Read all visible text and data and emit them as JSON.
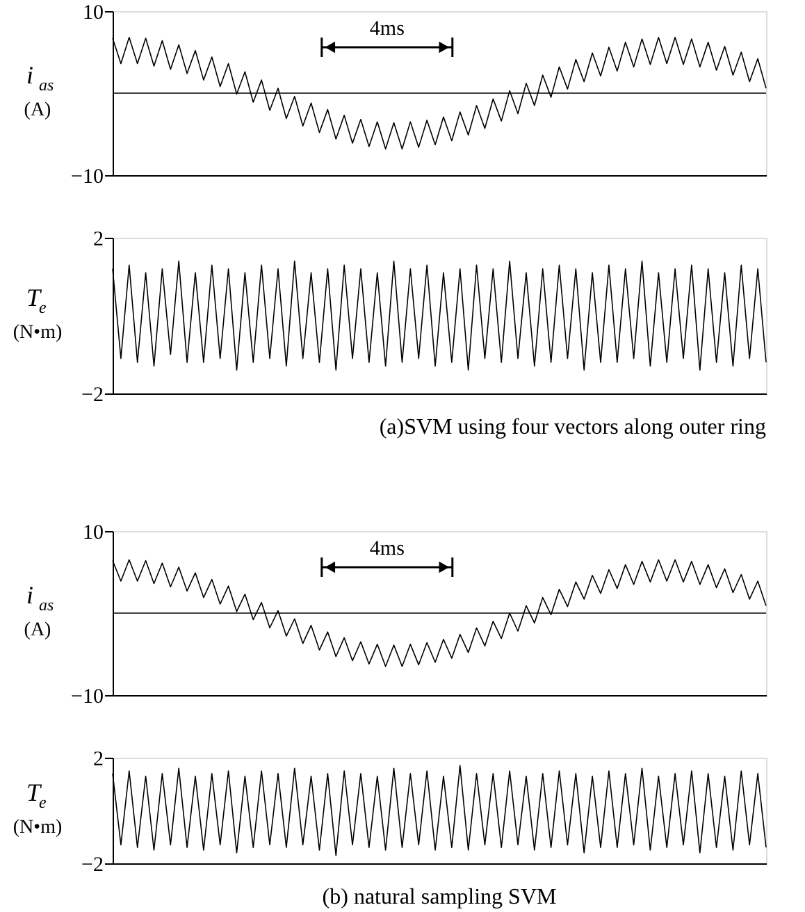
{
  "chart_data": [
    {
      "type": "line",
      "categories": [
        null,
        null,
        null,
        null,
        null,
        null,
        null,
        null,
        null,
        null,
        null,
        null,
        null,
        null,
        null,
        null,
        null,
        null,
        null,
        null,
        null,
        null,
        null,
        null,
        null,
        null,
        null,
        null,
        null,
        null,
        null,
        null,
        null,
        null,
        null,
        null,
        null,
        null,
        null,
        null,
        null,
        null,
        null,
        null,
        null,
        null,
        null,
        null,
        null,
        null,
        null,
        null,
        null,
        null,
        null,
        null,
        null,
        null,
        null,
        null,
        null,
        null,
        null,
        null,
        null,
        null,
        null,
        null,
        null,
        null,
        null,
        null,
        null,
        null,
        null,
        null,
        null,
        null,
        null,
        null
      ],
      "series": [
        {
          "color": "#000000",
          "values": [
            6.7,
            3.6,
            6.8,
            3.6,
            6.7,
            3.3,
            6.4,
            2.9,
            5.9,
            2.4,
            5.2,
            1.6,
            4.4,
            0.8,
            3.6,
            -0.1,
            2.6,
            -1.1,
            1.6,
            -2.1,
            0.6,
            -3.1,
            -0.4,
            -4.0,
            -1.2,
            -4.8,
            -2.0,
            -5.6,
            -2.7,
            -6.1,
            -3.2,
            -6.5,
            -3.5,
            -6.8,
            -3.6,
            -6.8,
            -3.5,
            -6.6,
            -3.3,
            -6.3,
            -2.9,
            -5.8,
            -2.3,
            -5.1,
            -1.5,
            -4.3,
            -0.7,
            -3.4,
            0.3,
            -2.5,
            1.2,
            -1.5,
            2.2,
            -0.5,
            3.2,
            0.5,
            4.1,
            1.4,
            4.9,
            2.1,
            5.6,
            2.7,
            6.2,
            3.2,
            6.6,
            3.5,
            6.8,
            3.6,
            6.8,
            3.5,
            6.6,
            3.2,
            6.2,
            2.8,
            5.7,
            2.2,
            5.0,
            1.4,
            4.2,
            0.6
          ]
        }
      ],
      "ylim": [
        -10,
        10
      ],
      "yticks": [
        -10,
        10
      ],
      "ylabel": "i$_{as}$ (A)",
      "tick_labels": "y",
      "ref_lines": [
        {
          "axis": "y",
          "value": 0,
          "color": "#000000"
        }
      ],
      "annotations": [
        "4ms"
      ]
    },
    {
      "type": "line",
      "categories": [
        null,
        null,
        null,
        null,
        null,
        null,
        null,
        null,
        null,
        null,
        null,
        null,
        null,
        null,
        null,
        null,
        null,
        null,
        null,
        null,
        null,
        null,
        null,
        null,
        null,
        null,
        null,
        null,
        null,
        null,
        null,
        null,
        null,
        null,
        null,
        null,
        null,
        null,
        null,
        null,
        null,
        null,
        null,
        null,
        null,
        null,
        null,
        null,
        null,
        null,
        null,
        null,
        null,
        null,
        null,
        null,
        null,
        null,
        null,
        null,
        null,
        null,
        null,
        null,
        null,
        null,
        null,
        null,
        null,
        null,
        null,
        null,
        null,
        null,
        null,
        null,
        null,
        null,
        null,
        null
      ],
      "series": [
        {
          "color": "#000000",
          "values": [
            1.2,
            -1.1,
            1.3,
            -1.2,
            1.1,
            -1.3,
            1.2,
            -1.0,
            1.4,
            -1.2,
            1.1,
            -1.2,
            1.3,
            -1.1,
            1.2,
            -1.4,
            1.1,
            -1.2,
            1.3,
            -1.1,
            1.2,
            -1.3,
            1.4,
            -1.1,
            1.1,
            -1.2,
            1.2,
            -1.4,
            1.3,
            -1.1,
            1.2,
            -1.2,
            1.1,
            -1.3,
            1.4,
            -1.2,
            1.2,
            -1.1,
            1.3,
            -1.3,
            1.1,
            -1.2,
            1.2,
            -1.4,
            1.3,
            -1.1,
            1.2,
            -1.2,
            1.4,
            -1.1,
            1.1,
            -1.3,
            1.2,
            -1.2,
            1.3,
            -1.1,
            1.2,
            -1.4,
            1.1,
            -1.2,
            1.3,
            -1.2,
            1.2,
            -1.1,
            1.4,
            -1.3,
            1.1,
            -1.2,
            1.2,
            -1.1,
            1.3,
            -1.4,
            1.2,
            -1.2,
            1.1,
            -1.3,
            1.3,
            -1.1,
            1.2,
            -1.2
          ]
        }
      ],
      "ylim": [
        -2,
        2
      ],
      "yticks": [
        -2,
        2
      ],
      "ylabel": "T$_{e}$ (N•m)",
      "tick_labels": "y",
      "annotations": [
        "(a)SVM using four vectors along outer ring"
      ]
    },
    {
      "type": "line",
      "categories": [
        null,
        null,
        null,
        null,
        null,
        null,
        null,
        null,
        null,
        null,
        null,
        null,
        null,
        null,
        null,
        null,
        null,
        null,
        null,
        null,
        null,
        null,
        null,
        null,
        null,
        null,
        null,
        null,
        null,
        null,
        null,
        null,
        null,
        null,
        null,
        null,
        null,
        null,
        null,
        null,
        null,
        null,
        null,
        null,
        null,
        null,
        null,
        null,
        null,
        null,
        null,
        null,
        null,
        null,
        null,
        null,
        null,
        null,
        null,
        null,
        null,
        null,
        null,
        null,
        null,
        null,
        null,
        null,
        null,
        null,
        null,
        null,
        null,
        null,
        null,
        null,
        null,
        null,
        null,
        null
      ],
      "series": [
        {
          "color": "#000000",
          "values": [
            6.4,
            3.9,
            6.5,
            3.9,
            6.4,
            3.6,
            6.1,
            3.2,
            5.6,
            2.7,
            4.9,
            1.9,
            4.1,
            1.1,
            3.3,
            0.2,
            2.3,
            -0.8,
            1.3,
            -1.8,
            0.3,
            -2.8,
            -0.7,
            -3.7,
            -1.5,
            -4.5,
            -2.3,
            -5.3,
            -3.0,
            -5.8,
            -3.5,
            -6.2,
            -3.8,
            -6.5,
            -3.9,
            -6.5,
            -3.8,
            -6.3,
            -3.6,
            -6.0,
            -3.2,
            -5.5,
            -2.6,
            -4.8,
            -1.8,
            -4.0,
            -1.0,
            -3.1,
            0.0,
            -2.2,
            0.9,
            -1.2,
            1.9,
            -0.2,
            2.9,
            0.8,
            3.8,
            1.7,
            4.6,
            2.4,
            5.3,
            3.0,
            5.9,
            3.5,
            6.3,
            3.8,
            6.5,
            3.9,
            6.5,
            3.8,
            6.3,
            3.5,
            5.9,
            3.1,
            5.4,
            2.5,
            4.7,
            1.7,
            3.9,
            0.9
          ]
        }
      ],
      "ylim": [
        -10,
        10
      ],
      "yticks": [
        -10,
        10
      ],
      "ylabel": "i$_{as}$ (A)",
      "tick_labels": "y",
      "ref_lines": [
        {
          "axis": "y",
          "value": 0,
          "color": "#000000"
        }
      ],
      "annotations": [
        "4ms"
      ]
    },
    {
      "type": "line",
      "categories": [
        null,
        null,
        null,
        null,
        null,
        null,
        null,
        null,
        null,
        null,
        null,
        null,
        null,
        null,
        null,
        null,
        null,
        null,
        null,
        null,
        null,
        null,
        null,
        null,
        null,
        null,
        null,
        null,
        null,
        null,
        null,
        null,
        null,
        null,
        null,
        null,
        null,
        null,
        null,
        null,
        null,
        null,
        null,
        null,
        null,
        null,
        null,
        null,
        null,
        null,
        null,
        null,
        null,
        null,
        null,
        null,
        null,
        null,
        null,
        null,
        null,
        null,
        null,
        null,
        null,
        null,
        null,
        null,
        null,
        null,
        null,
        null,
        null,
        null,
        null,
        null,
        null,
        null,
        null,
        null
      ],
      "series": [
        {
          "color": "#000000",
          "values": [
            1.4,
            -1.3,
            1.5,
            -1.4,
            1.3,
            -1.5,
            1.4,
            -1.3,
            1.6,
            -1.4,
            1.3,
            -1.5,
            1.4,
            -1.3,
            1.5,
            -1.6,
            1.3,
            -1.4,
            1.5,
            -1.3,
            1.4,
            -1.4,
            1.6,
            -1.3,
            1.3,
            -1.5,
            1.4,
            -1.7,
            1.5,
            -1.3,
            1.4,
            -1.4,
            1.3,
            -1.5,
            1.6,
            -1.4,
            1.4,
            -1.3,
            1.5,
            -1.5,
            1.3,
            -1.4,
            1.7,
            -1.5,
            1.4,
            -1.3,
            1.4,
            -1.4,
            1.5,
            -1.3,
            1.3,
            -1.5,
            1.4,
            -1.4,
            1.5,
            -1.3,
            1.4,
            -1.6,
            1.3,
            -1.4,
            1.5,
            -1.4,
            1.4,
            -1.3,
            1.6,
            -1.5,
            1.3,
            -1.4,
            1.4,
            -1.3,
            1.5,
            -1.6,
            1.4,
            -1.4,
            1.3,
            -1.5,
            1.5,
            -1.3,
            1.4,
            -1.4
          ]
        }
      ],
      "ylim": [
        -2,
        2
      ],
      "yticks": [
        -2,
        2
      ],
      "ylabel": "T$_{e}$ (N•m)",
      "tick_labels": "y",
      "annotations": [
        "(b) natural sampling SVM"
      ]
    }
  ]
}
